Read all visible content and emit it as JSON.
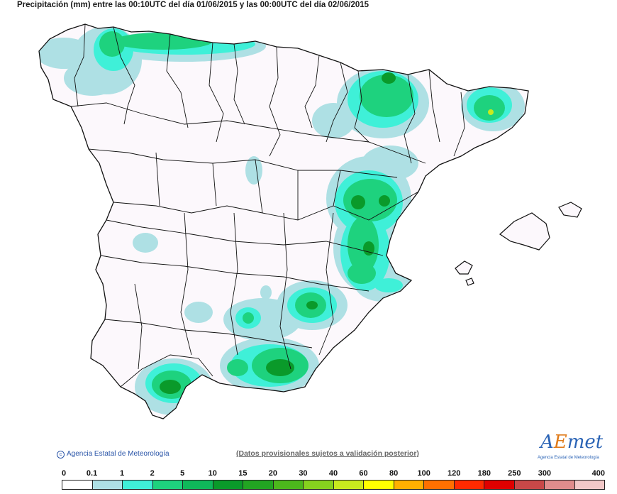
{
  "title": "Precipitación (mm) entre las 00:10UTC del día 01/06/2015 y las 00:00UTC del día 02/06/2015",
  "credit": "Agencia Estatal de Meteorología",
  "provisional_note": "(Datos provisionales sujetos a validación posterior)",
  "logo": {
    "brand_a": "A",
    "brand_e": "E",
    "brand_rest": "met",
    "subtitle": "Agencia Estatal de Meteorología"
  },
  "legend": {
    "ticks": [
      "0",
      "0.1",
      "1",
      "2",
      "5",
      "10",
      "15",
      "20",
      "30",
      "40",
      "60",
      "80",
      "100",
      "120",
      "180",
      "250",
      "300",
      "400"
    ],
    "colors": [
      "#ffffff",
      "#aee0e4",
      "#3ff0d8",
      "#1ed27e",
      "#0fb85a",
      "#0a9a2a",
      "#22a522",
      "#4cb81c",
      "#86d21e",
      "#c8ea1e",
      "#ffff00",
      "#ffb000",
      "#ff7000",
      "#ff2a00",
      "#e00000",
      "#c84848",
      "#e08c8c",
      "#f2c8c8"
    ]
  },
  "precip_colors": {
    "light": "#aee0e4",
    "low": "#3ff0d8",
    "mid": "#1ed27e",
    "high": "#0a9a2a",
    "peak": "#c8ea1e"
  }
}
